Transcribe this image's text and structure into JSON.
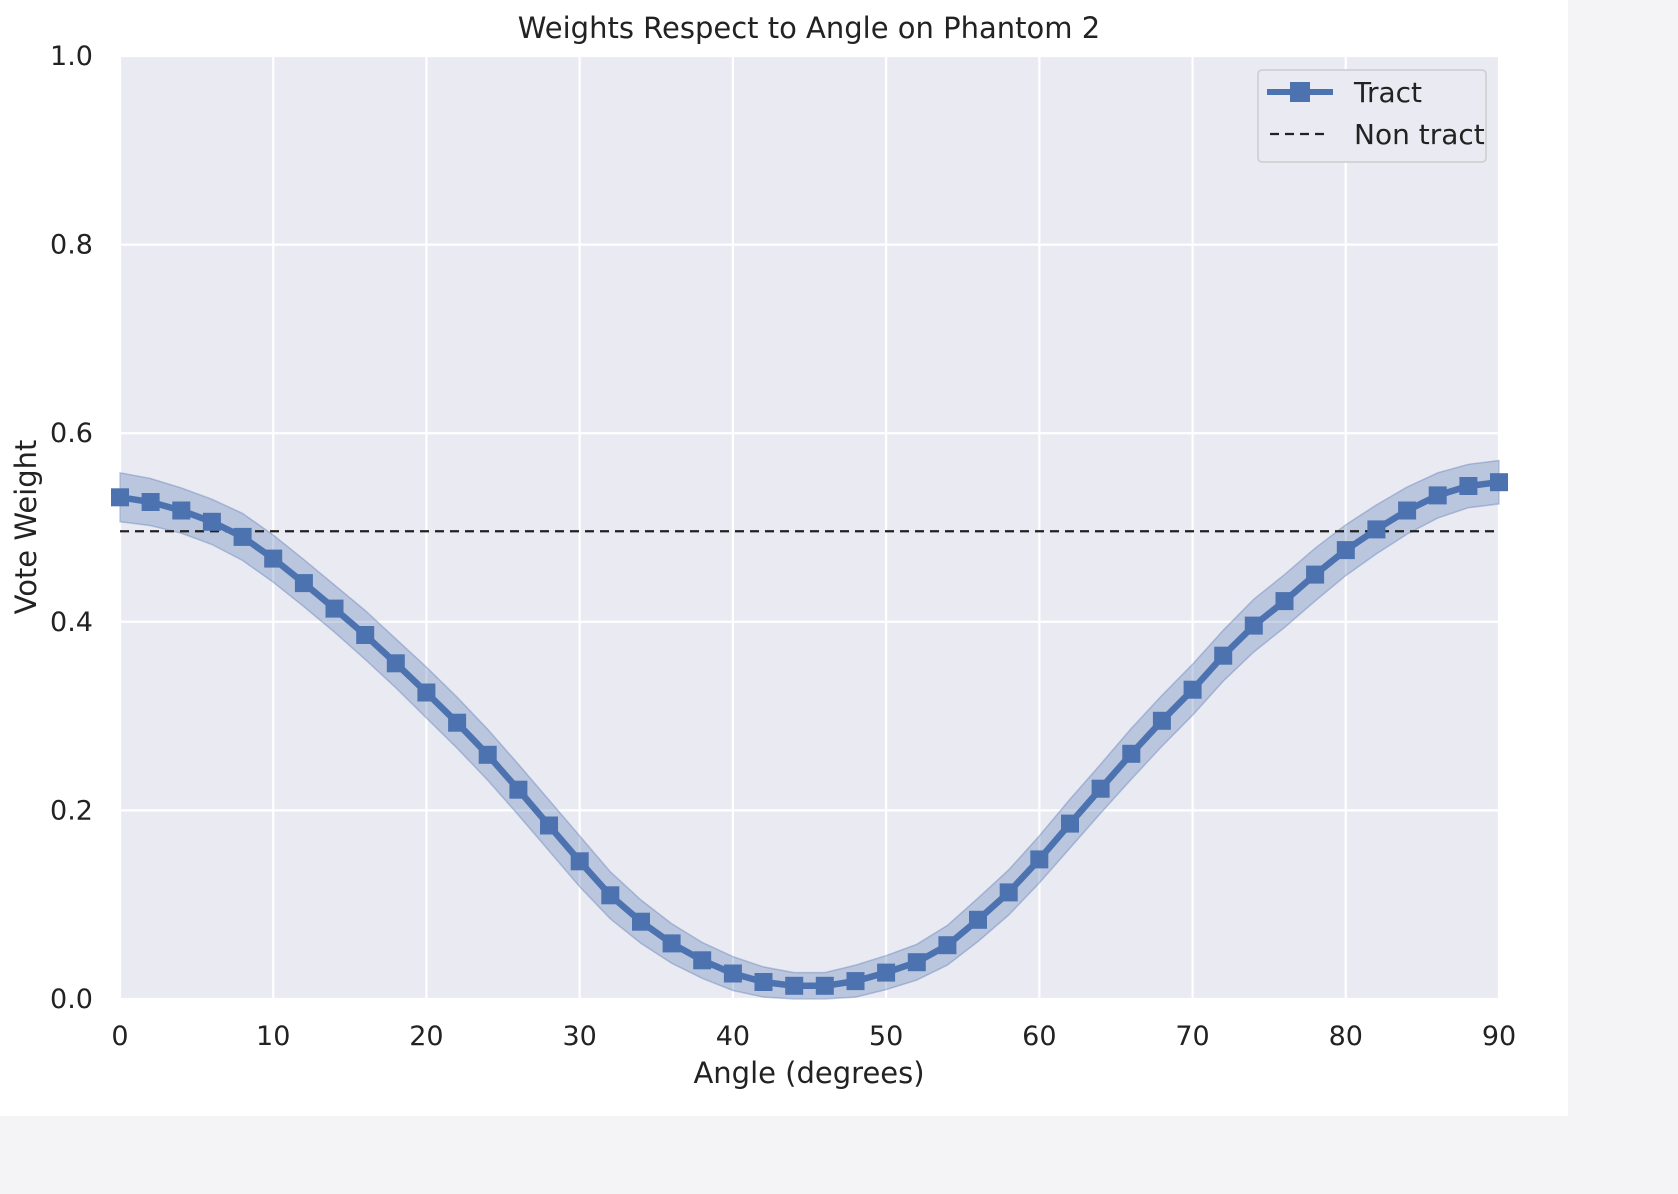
{
  "chart_data": {
    "type": "line",
    "title": "Weights Respect to Angle on Phantom 2",
    "xlabel": "Angle (degrees)",
    "ylabel": "Vote Weight",
    "xlim": [
      0,
      90
    ],
    "ylim": [
      0,
      1.0
    ],
    "xticks": [
      "0",
      "10",
      "20",
      "30",
      "40",
      "50",
      "60",
      "70",
      "80",
      "90"
    ],
    "yticks": [
      "0.0",
      "0.2",
      "0.4",
      "0.6",
      "0.8",
      "1.0"
    ],
    "grid": true,
    "legend_position": "top-right",
    "series": [
      {
        "name": "Tract",
        "style": "solid",
        "marker": "square",
        "color": "#4c72b0",
        "band_color": "#4c72b0",
        "x": [
          0,
          2,
          4,
          6,
          8,
          10,
          12,
          14,
          16,
          18,
          20,
          22,
          24,
          26,
          28,
          30,
          32,
          34,
          36,
          38,
          40,
          42,
          44,
          46,
          48,
          50,
          52,
          54,
          56,
          58,
          60,
          62,
          64,
          66,
          68,
          70,
          72,
          74,
          76,
          78,
          80,
          82,
          84,
          86,
          88,
          90
        ],
        "values": [
          0.532,
          0.527,
          0.518,
          0.506,
          0.49,
          0.467,
          0.441,
          0.414,
          0.386,
          0.356,
          0.325,
          0.293,
          0.259,
          0.222,
          0.184,
          0.146,
          0.11,
          0.082,
          0.059,
          0.041,
          0.027,
          0.018,
          0.014,
          0.014,
          0.019,
          0.028,
          0.039,
          0.057,
          0.084,
          0.113,
          0.148,
          0.186,
          0.223,
          0.26,
          0.295,
          0.328,
          0.364,
          0.396,
          0.422,
          0.45,
          0.476,
          0.498,
          0.518,
          0.534,
          0.544,
          0.548
        ],
        "lower": [
          0.506,
          0.502,
          0.494,
          0.482,
          0.465,
          0.442,
          0.416,
          0.389,
          0.36,
          0.33,
          0.298,
          0.266,
          0.232,
          0.195,
          0.157,
          0.119,
          0.085,
          0.059,
          0.038,
          0.022,
          0.009,
          0.002,
          0.0,
          0.0,
          0.002,
          0.01,
          0.02,
          0.036,
          0.061,
          0.089,
          0.123,
          0.16,
          0.197,
          0.233,
          0.268,
          0.301,
          0.337,
          0.368,
          0.394,
          0.422,
          0.449,
          0.472,
          0.493,
          0.51,
          0.521,
          0.525
        ],
        "upper": [
          0.558,
          0.552,
          0.542,
          0.53,
          0.515,
          0.492,
          0.466,
          0.439,
          0.412,
          0.382,
          0.352,
          0.32,
          0.286,
          0.249,
          0.211,
          0.173,
          0.135,
          0.105,
          0.08,
          0.06,
          0.045,
          0.034,
          0.028,
          0.028,
          0.036,
          0.046,
          0.058,
          0.078,
          0.107,
          0.137,
          0.173,
          0.212,
          0.249,
          0.287,
          0.322,
          0.355,
          0.391,
          0.424,
          0.45,
          0.478,
          0.503,
          0.524,
          0.543,
          0.558,
          0.567,
          0.571
        ]
      },
      {
        "name": "Non tract",
        "style": "dashed",
        "color": "#222222",
        "x": [
          0,
          90
        ],
        "values": [
          0.496,
          0.496
        ]
      }
    ]
  }
}
